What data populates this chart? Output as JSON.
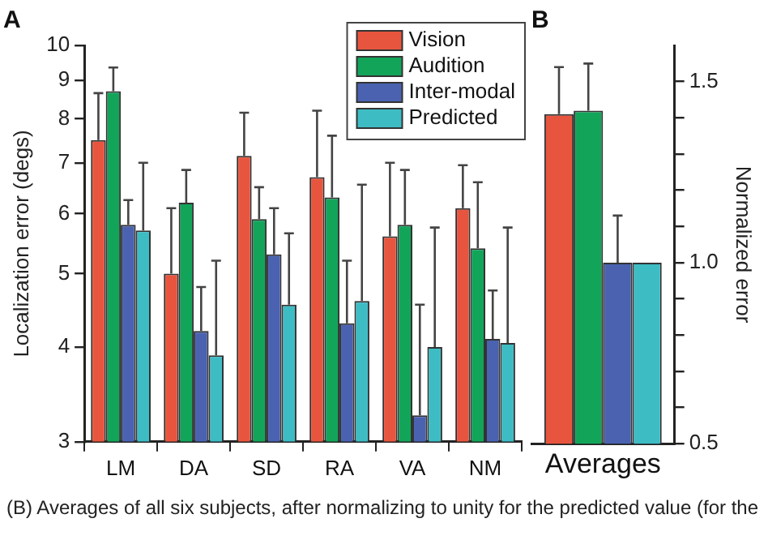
{
  "chart_data": [
    {
      "type": "bar",
      "title": "A",
      "ylabel": "Localization error (degs)",
      "categories": [
        "LM",
        "DA",
        "SD",
        "RA",
        "VA",
        "NM"
      ],
      "log": true,
      "ylim": [
        3,
        10
      ],
      "yticks": [
        3,
        4,
        5,
        6,
        7,
        8,
        9,
        10
      ],
      "legend": "top right",
      "grid": false,
      "annotations": [
        "(B) Averages of all six subjects, after normalizing to unity for the predicted value (for the"
      ],
      "series": [
        {
          "name": "Vision",
          "color": "#e8553e",
          "values": [
            7.5,
            5.0,
            7.15,
            6.7,
            5.6,
            6.1
          ],
          "errors": [
            [
              7.5,
              8.65
            ],
            [
              5.0,
              6.1
            ],
            [
              7.15,
              8.15
            ],
            [
              6.7,
              8.2
            ],
            [
              5.6,
              7.0
            ],
            [
              6.1,
              6.95
            ]
          ]
        },
        {
          "name": "Audition",
          "color": "#12a55a",
          "values": [
            8.7,
            6.2,
            5.9,
            6.3,
            5.8,
            5.4
          ],
          "errors": [
            [
              8.7,
              9.35
            ],
            [
              6.2,
              6.85
            ],
            [
              5.9,
              6.5
            ],
            [
              6.3,
              7.6
            ],
            [
              5.8,
              6.85
            ],
            [
              5.4,
              6.6
            ]
          ]
        },
        {
          "name": "Inter-modal",
          "color": "#4a62b0",
          "values": [
            5.8,
            4.2,
            5.3,
            4.3,
            3.25,
            4.1
          ],
          "errors": [
            [
              5.8,
              6.25
            ],
            [
              4.2,
              4.8
            ],
            [
              5.3,
              6.1
            ],
            [
              4.3,
              5.2
            ],
            [
              3.25,
              4.55
            ],
            [
              4.1,
              4.75
            ]
          ]
        },
        {
          "name": "Predicted",
          "color": "#3dbcc4",
          "values": [
            5.7,
            3.9,
            4.55,
            4.6,
            4.0,
            4.05
          ],
          "errors": [
            [
              5.7,
              7.0
            ],
            [
              3.9,
              5.2
            ],
            [
              4.55,
              5.65
            ],
            [
              4.6,
              6.55
            ],
            [
              4.0,
              5.75
            ],
            [
              4.05,
              5.75
            ]
          ]
        }
      ]
    },
    {
      "type": "bar",
      "title": "B",
      "y2label": "Normalized error",
      "categories": [
        "Averages"
      ],
      "y2lim": [
        0.5,
        1.6
      ],
      "y2ticks": [
        0.5,
        {
          "value": 0.6,
          "label": null
        },
        {
          "value": 0.7,
          "label": null
        },
        {
          "value": 0.8,
          "label": null
        },
        {
          "value": 0.9,
          "label": null
        },
        {
          "value": 1,
          "label": "1.0"
        },
        {
          "value": 1.1,
          "label": null
        },
        {
          "value": 1.2,
          "label": null
        },
        {
          "value": 1.3,
          "label": null
        },
        {
          "value": 1.4,
          "label": null
        },
        1.5
      ],
      "grid": false,
      "series": [
        {
          "color": "#e8553e",
          "axis": "y2",
          "values": [
            1.41
          ],
          "errors": [
            [
              1.41,
              1.54
            ]
          ]
        },
        {
          "color": "#12a55a",
          "axis": "y2",
          "values": [
            1.42
          ],
          "errors": [
            [
              1.42,
              1.55
            ]
          ]
        },
        {
          "color": "#4a62b0",
          "axis": "y2",
          "values": [
            1.0
          ],
          "errors": [
            [
              1.0,
              1.13
            ]
          ]
        },
        {
          "color": "#3dbcc4",
          "axis": "y2",
          "values": [
            1.0
          ],
          "errors": [
            null
          ]
        }
      ]
    }
  ]
}
